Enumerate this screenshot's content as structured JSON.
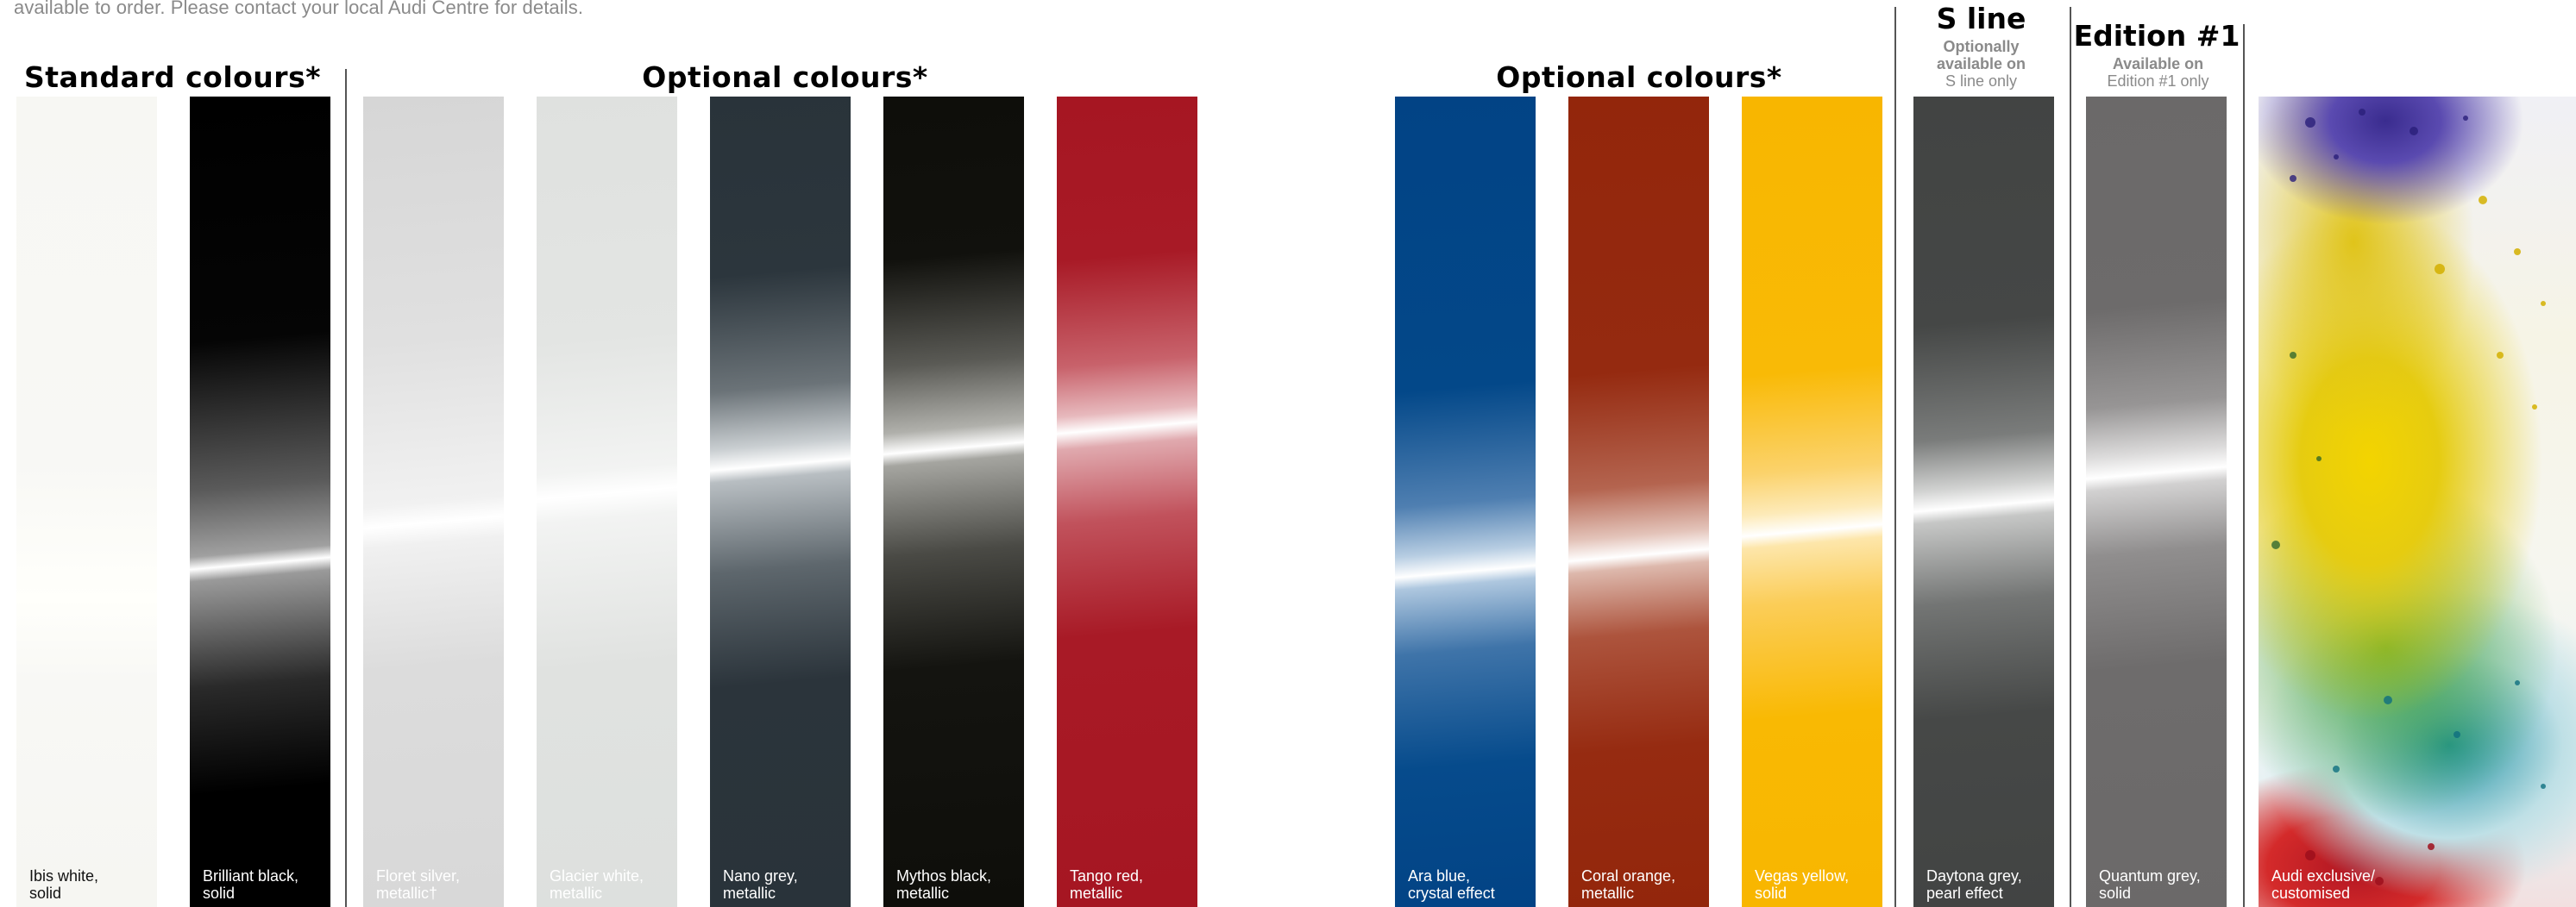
{
  "intro_text": "available to order. Please contact your local Audi Centre for details.",
  "groups": {
    "standard": {
      "title": "Standard colours*"
    },
    "optional_1": {
      "title": "Optional colours*"
    },
    "optional_2": {
      "title": "Optional colours*"
    },
    "sline": {
      "title": "S line",
      "note_bold_1": "Optionally",
      "note_bold_2": "available on",
      "note_3": "S line only"
    },
    "edition": {
      "title": "Edition #1",
      "note_bold_1": "Available on",
      "note_2": "Edition #1 only"
    }
  },
  "swatches": [
    {
      "name": "Ibis white,",
      "finish": "solid",
      "color": "#f8f8f5"
    },
    {
      "name": "Brilliant black,",
      "finish": "solid",
      "color": "#000000"
    },
    {
      "name": "Floret silver,",
      "finish": "metallic†",
      "color": "#dadada"
    },
    {
      "name": "Glacier white,",
      "finish": "metallic",
      "color": "#dfe1df"
    },
    {
      "name": "Nano grey,",
      "finish": "metallic",
      "color": "#29333a"
    },
    {
      "name": "Mythos black,",
      "finish": "metallic",
      "color": "#0e0e0a"
    },
    {
      "name": "Tango red,",
      "finish": "metallic",
      "color": "#a61622"
    },
    {
      "name": "Ara blue,",
      "finish": "crystal effect",
      "color": "#024385"
    },
    {
      "name": "Coral orange,",
      "finish": "metallic",
      "color": "#93260b"
    },
    {
      "name": "Vegas yellow,",
      "finish": "solid",
      "color": "#f8b600"
    },
    {
      "name": "Daytona grey,",
      "finish": "pearl effect",
      "color": "#424443"
    },
    {
      "name": "Quantum grey,",
      "finish": "solid",
      "color": "#6b6969"
    },
    {
      "name": "Audi exclusive/",
      "finish": "customised",
      "color": "multicolour"
    }
  ]
}
